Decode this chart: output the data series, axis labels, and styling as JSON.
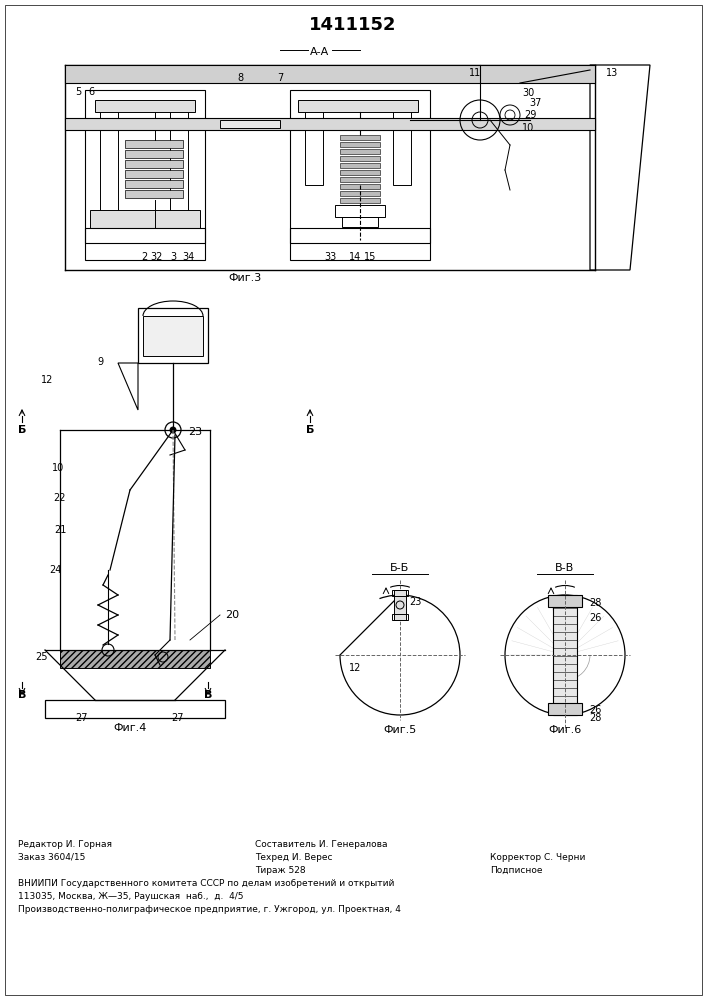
{
  "title": "1411152",
  "bg_color": "#ffffff",
  "line_color": "#000000",
  "section_aa_label": "А-А",
  "fig3_label": "Фиг.3",
  "fig4_label": "Фиг.4",
  "fig5_label": "Фиг.5",
  "fig6_label": "Фиг.6",
  "fig5_bb_label": "Б-Б",
  "fig6_vv_label": "В-В",
  "footer": {
    "col1": [
      "Редактор И. Горная",
      "Заказ 3604/15"
    ],
    "col2": [
      "Составитель И. Генералова",
      "Техред И. Верес",
      "Тираж 528"
    ],
    "col3": [
      "",
      "Корректор С. Черни",
      "Подписное"
    ],
    "full": [
      "ВНИИПИ Государственного комитета СССР по делам изобретений и открытий",
      "113035, Москва, Ж—35, Раушская  наб.,  д.  4/5",
      "Производственно-полиграфическое предприятие, г. Ужгород, ул. Проектная, 4"
    ]
  }
}
